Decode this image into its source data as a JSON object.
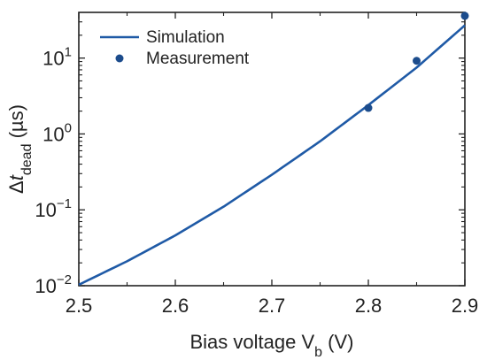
{
  "chart_data": {
    "type": "line",
    "title": "",
    "xlabel": "Bias voltage V",
    "xlabel_sub": "b",
    "xlabel_suffix": " (V)",
    "ylabel_prefix": "Δ",
    "ylabel_var": "t",
    "ylabel_sub": "dead",
    "ylabel_suffix": " (µs)",
    "xlim": [
      2.5,
      2.9
    ],
    "ylim": [
      0.01,
      40
    ],
    "yscale": "log",
    "grid": false,
    "legend_position": "top-left",
    "x_ticks": [
      {
        "value": 2.5,
        "label": "2.5"
      },
      {
        "value": 2.6,
        "label": "2.6"
      },
      {
        "value": 2.7,
        "label": "2.7"
      },
      {
        "value": 2.8,
        "label": "2.8"
      },
      {
        "value": 2.9,
        "label": "2.9"
      }
    ],
    "y_ticks": [
      {
        "value": 0.01,
        "base": "10",
        "exp": "−2"
      },
      {
        "value": 0.1,
        "base": "10",
        "exp": "−1"
      },
      {
        "value": 1,
        "base": "10",
        "exp": "0"
      },
      {
        "value": 10,
        "base": "10",
        "exp": "1"
      }
    ],
    "series": [
      {
        "name": "Simulation",
        "kind": "line",
        "color": "#1f5aa6",
        "x": [
          2.5,
          2.55,
          2.6,
          2.65,
          2.7,
          2.75,
          2.8,
          2.85,
          2.9
        ],
        "y": [
          0.0103,
          0.021,
          0.046,
          0.11,
          0.29,
          0.8,
          2.4,
          7.5,
          27
        ]
      },
      {
        "name": "Measurement",
        "kind": "scatter",
        "color": "#1c4c8c",
        "x": [
          2.8,
          2.85,
          2.9
        ],
        "y": [
          2.2,
          9.2,
          36
        ]
      }
    ]
  }
}
